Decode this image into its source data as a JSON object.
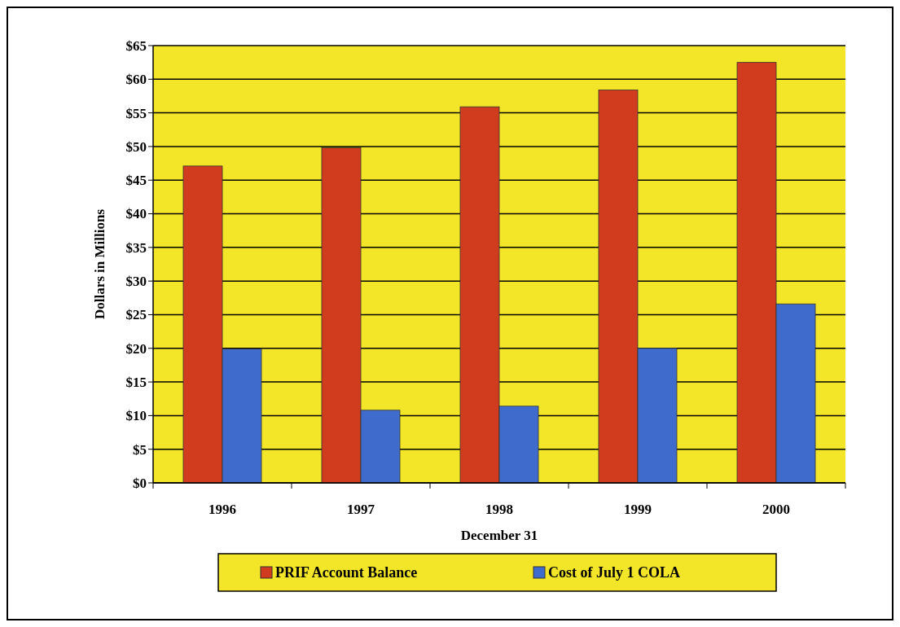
{
  "chart_data": {
    "type": "bar",
    "xlabel": "December 31",
    "ylabel": "Dollars in Millions",
    "categories": [
      "1996",
      "1997",
      "1998",
      "1999",
      "2000"
    ],
    "series": [
      {
        "name": "PRIF Account Balance",
        "color": "#d23c1e",
        "values": [
          47.1,
          49.8,
          55.9,
          58.4,
          62.5
        ]
      },
      {
        "name": "Cost of July 1 COLA",
        "color": "#3f6ccc",
        "values": [
          19.9,
          10.8,
          11.4,
          20.0,
          26.6
        ]
      }
    ],
    "ylim": [
      0,
      65
    ],
    "yticks": [
      {
        "value": 0,
        "label": "$0"
      },
      {
        "value": 5,
        "label": "$5"
      },
      {
        "value": 10,
        "label": "$10"
      },
      {
        "value": 15,
        "label": "$15"
      },
      {
        "value": 20,
        "label": "$20"
      },
      {
        "value": 25,
        "label": "$25"
      },
      {
        "value": 30,
        "label": "$30"
      },
      {
        "value": 35,
        "label": "$35"
      },
      {
        "value": 40,
        "label": "$40"
      },
      {
        "value": 45,
        "label": "$45"
      },
      {
        "value": 50,
        "label": "$50"
      },
      {
        "value": 55,
        "label": "$55"
      },
      {
        "value": 60,
        "label": "$60"
      },
      {
        "value": 65,
        "label": "$65"
      }
    ],
    "grid": "y",
    "legend": "bottom"
  }
}
